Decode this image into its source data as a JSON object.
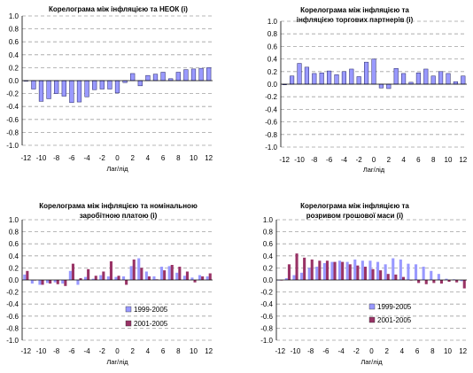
{
  "colors": {
    "series1": "#9999ff",
    "series2": "#993366",
    "grid": "#a0a0a0",
    "axis": "#000000"
  },
  "panels_text": [
    {
      "title_lines": [
        "Корелограма між інфляцією та НЕОК (і)"
      ],
      "xlabel": "Лаг/лід"
    },
    {
      "title_lines": [
        "Корелограма між інфляцією та",
        "інфляцією торгових партнерів (і)"
      ],
      "xlabel": "Лаг/лід"
    },
    {
      "title_lines": [
        "Корелограма між інфляцією та номінальною",
        "заробітною платою (і)"
      ],
      "xlabel": "Лаг/лід"
    },
    {
      "title_lines": [
        "Корелограма між інфляцією та",
        "розривом грошової маси (і)"
      ],
      "xlabel": "Лаг/лід"
    }
  ],
  "chart_data": [
    {
      "type": "bar",
      "title": "Корелограма між інфляцією та НЕОК (і)",
      "xlabel": "Лаг/лід",
      "ylabel": "",
      "ylim": [
        -1.0,
        1.0
      ],
      "yticks": [
        "1.0",
        "0.8",
        "0.6",
        "0.4",
        "0.2",
        "0.0",
        "-0.2",
        "-0.4",
        "-0.6",
        "-0.8",
        "-1.0"
      ],
      "x": [
        -12,
        -11,
        -10,
        -9,
        -8,
        -7,
        -6,
        -5,
        -4,
        -3,
        -2,
        -1,
        0,
        1,
        2,
        3,
        4,
        5,
        6,
        7,
        8,
        9,
        10,
        11,
        12
      ],
      "xticks": [
        "-12",
        "-10",
        "-8",
        "-6",
        "-4",
        "-2",
        "0",
        "2",
        "4",
        "6",
        "8",
        "10",
        "12"
      ],
      "grid": true,
      "series": [
        {
          "values": [
            0.0,
            -0.13,
            -0.32,
            -0.28,
            -0.2,
            -0.24,
            -0.34,
            -0.33,
            -0.25,
            -0.14,
            -0.13,
            -0.13,
            -0.19,
            -0.03,
            0.11,
            -0.08,
            0.08,
            0.1,
            0.13,
            0.03,
            0.13,
            0.17,
            0.18,
            0.19,
            0.2
          ]
        }
      ]
    },
    {
      "type": "bar",
      "title": "Корелограма між інфляцією та інфляцією торгових партнерів (і)",
      "xlabel": "Лаг/лід",
      "ylabel": "",
      "ylim": [
        -1.0,
        1.0
      ],
      "yticks": [
        "1.0",
        "0.8",
        "0.6",
        "0.4",
        "0.2",
        "0.0",
        "-0.2",
        "-0.4",
        "-0.6",
        "-0.8",
        "-1.0"
      ],
      "x": [
        -12,
        -11,
        -10,
        -9,
        -8,
        -7,
        -6,
        -5,
        -4,
        -3,
        -2,
        -1,
        0,
        1,
        2,
        3,
        4,
        5,
        6,
        7,
        8,
        9,
        10,
        11,
        12
      ],
      "xticks": [
        "-12",
        "-10",
        "-8",
        "-6",
        "-4",
        "-2",
        "0",
        "2",
        "4",
        "6",
        "8",
        "10",
        "12"
      ],
      "grid": true,
      "series": [
        {
          "values": [
            -0.01,
            0.13,
            0.33,
            0.27,
            0.17,
            0.18,
            0.21,
            0.15,
            0.2,
            0.24,
            0.12,
            0.35,
            0.4,
            -0.06,
            -0.07,
            0.25,
            0.17,
            0.03,
            0.18,
            0.24,
            0.13,
            0.2,
            0.17,
            0.04,
            0.13
          ]
        }
      ]
    },
    {
      "type": "bar",
      "title": "Корелограма між інфляцією та номінальною заробітною платою (і)",
      "xlabel": "Лаг/лід",
      "ylabel": "",
      "ylim": [
        -1.0,
        1.0
      ],
      "yticks": [
        "1.0",
        "0.8",
        "0.6",
        "0.4",
        "0.2",
        "0.0",
        "-0.2",
        "-0.4",
        "-0.6",
        "-0.8",
        "-1.0"
      ],
      "x": [
        -12,
        -11,
        -10,
        -9,
        -8,
        -7,
        -6,
        -5,
        -4,
        -3,
        -2,
        -1,
        0,
        1,
        2,
        3,
        4,
        5,
        6,
        7,
        8,
        9,
        10,
        11,
        12
      ],
      "xticks": [
        "-12",
        "-10",
        "-8",
        "-6",
        "-4",
        "-2",
        "0",
        "2",
        "4",
        "6",
        "8",
        "10",
        "12"
      ],
      "grid": true,
      "legend": "bottom-center",
      "series": [
        {
          "name": "1999-2005",
          "values": [
            0.09,
            -0.06,
            -0.08,
            -0.05,
            -0.04,
            -0.06,
            0.15,
            -0.08,
            0.05,
            0.02,
            0.08,
            0.06,
            0.05,
            0.06,
            0.23,
            0.36,
            0.14,
            0.06,
            0.22,
            0.23,
            0.12,
            0.07,
            0.04,
            0.08,
            0.06
          ]
        },
        {
          "name": "2001-2005",
          "values": [
            0.15,
            0.0,
            -0.08,
            -0.06,
            -0.07,
            -0.1,
            0.27,
            0.03,
            0.18,
            0.07,
            0.14,
            0.31,
            0.07,
            -0.08,
            0.34,
            0.2,
            0.06,
            0.01,
            0.16,
            0.25,
            0.22,
            0.14,
            -0.04,
            0.06,
            0.11
          ]
        }
      ]
    },
    {
      "type": "bar",
      "title": "Корелограма між інфляцією та розривом грошової маси (і)",
      "xlabel": "Лаг/лід",
      "ylabel": "",
      "ylim": [
        -1.0,
        1.0
      ],
      "yticks": [
        "1.0",
        "0.8",
        "0.6",
        "0.4",
        "0.2",
        "0.0",
        "-0.2",
        "-0.4",
        "-0.6",
        "-0.8",
        "-1.0"
      ],
      "x": [
        -12,
        -11,
        -10,
        -9,
        -8,
        -7,
        -6,
        -5,
        -4,
        -3,
        -2,
        -1,
        0,
        1,
        2,
        3,
        4,
        5,
        6,
        7,
        8,
        9,
        10,
        11,
        12
      ],
      "xticks": [
        "-12",
        "-10",
        "-8",
        "-6",
        "-4",
        "-2",
        "0",
        "2",
        "4",
        "6",
        "8",
        "10",
        "12"
      ],
      "grid": true,
      "legend": "bottom-center",
      "series": [
        {
          "name": "1999-2005",
          "values": [
            0.0,
            0.03,
            0.08,
            0.12,
            0.2,
            0.22,
            0.28,
            0.3,
            0.32,
            0.3,
            0.34,
            0.32,
            0.32,
            0.3,
            0.26,
            0.36,
            0.34,
            0.27,
            0.26,
            0.22,
            0.15,
            0.1,
            0.02,
            0.01,
            -0.02
          ]
        },
        {
          "name": "2001-2005",
          "values": [
            0.0,
            0.26,
            0.44,
            0.37,
            0.34,
            0.32,
            0.32,
            0.3,
            0.3,
            0.26,
            0.24,
            0.22,
            0.18,
            0.16,
            0.1,
            0.09,
            0.05,
            0.0,
            -0.05,
            -0.07,
            -0.05,
            -0.06,
            -0.03,
            -0.04,
            -0.14
          ]
        }
      ]
    }
  ]
}
